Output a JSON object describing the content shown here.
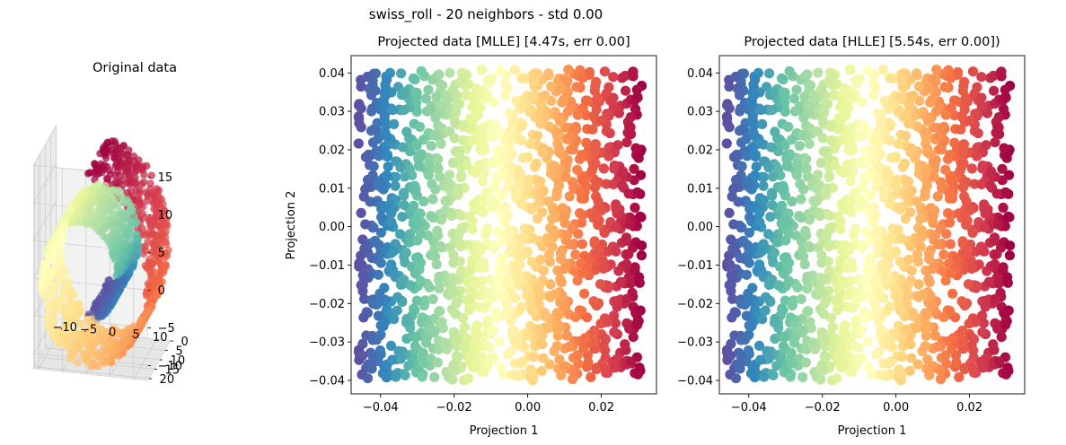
{
  "figure_title": "swiss_roll - 20 neighbors - std 0.00",
  "colormap": [
    "#5e4fa2",
    "#3288bd",
    "#66c2a5",
    "#abdda4",
    "#e6f598",
    "#ffffbf",
    "#fee08b",
    "#fdae61",
    "#f46d43",
    "#d53e4f",
    "#9e0142"
  ],
  "chart_data": [
    {
      "type": "scatter",
      "projection": "3d",
      "title": "Original data",
      "xlabel": "",
      "ylabel": "",
      "zlabel": "",
      "x_ticks": [
        "−10",
        "−5",
        "0",
        "5",
        "10"
      ],
      "y_ticks": [
        "0",
        "5",
        "10",
        "15",
        "20"
      ],
      "z_ticks": [
        "15",
        "10",
        "5",
        "0",
        "−5",
        "−10"
      ],
      "xlim": [
        -11,
        13
      ],
      "ylim": [
        0,
        21
      ],
      "zlim": [
        -12,
        15
      ],
      "grid": true,
      "n_points": 1500,
      "color_by": "position along roll"
    },
    {
      "type": "scatter",
      "title": "Projected data [MLLE] [4.47s, err 0.00]",
      "xlabel": "Projection 1",
      "ylabel": "Projection 2",
      "xlim": [
        -0.048,
        0.035
      ],
      "ylim": [
        -0.0435,
        0.0445
      ],
      "x_ticks": [
        "−0.04",
        "−0.02",
        "0.00",
        "0.02"
      ],
      "y_ticks": [
        "0.04",
        "0.03",
        "0.02",
        "0.01",
        "0.00",
        "−0.01",
        "−0.02",
        "−0.03",
        "−0.04"
      ],
      "x_range": [
        -0.046,
        0.031
      ],
      "y_range": [
        -0.04,
        0.041
      ],
      "n_points": 1500,
      "color_by": "Projection 1",
      "grid": false
    },
    {
      "type": "scatter",
      "title": "Projected data [HLLE] [5.54s, err 0.00])",
      "xlabel": "Projection 1",
      "ylabel": "",
      "xlim": [
        -0.048,
        0.035
      ],
      "ylim": [
        -0.0435,
        0.0445
      ],
      "x_ticks": [
        "−0.04",
        "−0.02",
        "0.00",
        "0.02"
      ],
      "y_ticks": [
        "0.04",
        "0.03",
        "0.02",
        "0.01",
        "0.00",
        "−0.01",
        "−0.02",
        "−0.03",
        "−0.04"
      ],
      "x_range": [
        -0.046,
        0.031
      ],
      "y_range": [
        -0.04,
        0.041
      ],
      "n_points": 1500,
      "color_by": "Projection 1",
      "grid": false
    }
  ]
}
